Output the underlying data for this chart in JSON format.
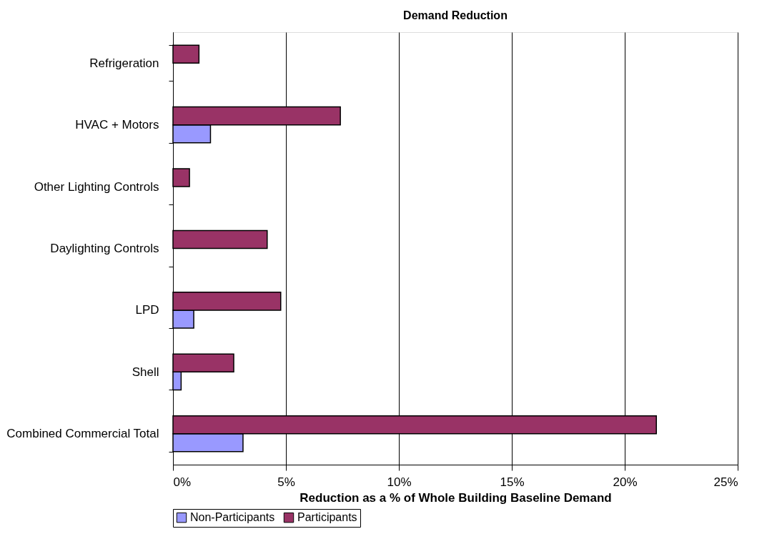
{
  "chart_data": {
    "type": "bar",
    "orientation": "horizontal",
    "title": "Demand Reduction",
    "xlabel": "Reduction as a % of Whole Building Baseline Demand",
    "categories": [
      "Refrigeration",
      "HVAC + Motors",
      "Other Lighting Controls",
      "Daylighting Controls",
      "LPD",
      "Shell",
      "Combined Commercial Total"
    ],
    "series": [
      {
        "name": "Non-Participants",
        "color": "#9999ff",
        "values": [
          null,
          1.66,
          null,
          null,
          0.92,
          0.36,
          3.1
        ]
      },
      {
        "name": "Participants",
        "color": "#993366",
        "values": [
          1.15,
          7.41,
          0.73,
          4.17,
          4.77,
          2.69,
          21.4
        ]
      }
    ],
    "xlim": [
      0,
      25
    ],
    "xticks": [
      {
        "value": 0,
        "label": "0%"
      },
      {
        "value": 5,
        "label": "5%"
      },
      {
        "value": 10,
        "label": "10%"
      },
      {
        "value": 15,
        "label": "15%"
      },
      {
        "value": 20,
        "label": "20%"
      },
      {
        "value": 25,
        "label": "25%"
      }
    ],
    "grid": "x",
    "legend": "bottom"
  }
}
